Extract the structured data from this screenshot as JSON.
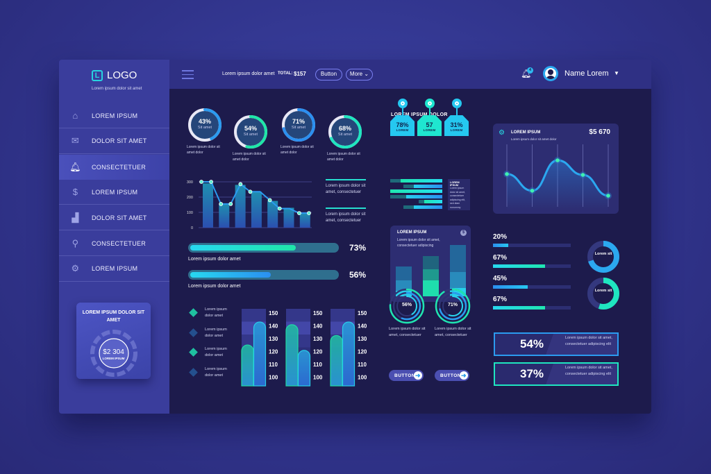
{
  "sidebar": {
    "logo_letter": "L",
    "logo_text": "LOGO",
    "tagline": "Lorem ipsum dolor sit amet",
    "items": [
      {
        "label": "LOREM IPSUM",
        "icon": "home-icon"
      },
      {
        "label": "DOLOR SIT AMET",
        "icon": "mail-icon"
      },
      {
        "label": "CONSECTETUER",
        "icon": "bell-icon",
        "active": true
      },
      {
        "label": "LOREM IPSUM",
        "icon": "dollar-icon"
      },
      {
        "label": "DOLOR SIT AMET",
        "icon": "chart-icon"
      },
      {
        "label": "CONSECTETUER",
        "icon": "search-icon"
      },
      {
        "label": "LOREM IPSUM",
        "icon": "gear-icon"
      }
    ],
    "widget": {
      "title": "LOREM IPSUM DOLOR SIT AMET",
      "amount": "$2 304",
      "sub": "LOREM IPSUM"
    }
  },
  "header": {
    "text": "Lorem ipsum dolor amet",
    "total_label": "TOTAL:",
    "total_value": "$157",
    "button": "Button",
    "more": "More",
    "notifications": "4",
    "user": "Name Lorem"
  },
  "donuts": [
    {
      "value": "43%",
      "label": "Sit amet",
      "pct": 43,
      "caption": "Lorem ipsum dolor sit amet dolor"
    },
    {
      "value": "54%",
      "label": "Sit amet",
      "pct": 54,
      "caption": "Lorem ipsum dolor sit amet dolor"
    },
    {
      "value": "71%",
      "label": "Sit amet",
      "pct": 71,
      "caption": "Lorem ipsum dolor sit amet dolor"
    },
    {
      "value": "68%",
      "label": "Sit amet",
      "pct": 68,
      "caption": "Lorem ipsum dolor sit amet dolor"
    }
  ],
  "chart_data": [
    {
      "type": "bar",
      "yticks": [
        "300",
        "200",
        "100",
        "0"
      ],
      "ylim": [
        0,
        300
      ],
      "bars": [
        290,
        155,
        280,
        235,
        175,
        130,
        95
      ],
      "line": [
        300,
        300,
        155,
        155,
        285,
        235,
        235,
        180,
        125,
        125,
        95,
        95
      ],
      "legend": [
        "Lorem ipsum dolor sit amet, consectetuer",
        "Lorem ipsum dolor sit amet, consectetuer"
      ]
    },
    {
      "type": "bar",
      "ylim": [
        100,
        150
      ],
      "yticks": [
        "150",
        "140",
        "130",
        "120",
        "110",
        "100"
      ],
      "groups": [
        [
          125,
          142
        ],
        [
          140,
          121
        ],
        [
          132,
          142
        ]
      ]
    },
    {
      "type": "line",
      "title": "LOREM IPSUM",
      "subtitle": "Lorem ipsum dolor sit amet dolor",
      "amount": "$5 670",
      "values": [
        0.62,
        0.22,
        0.95,
        0.6,
        0.1
      ]
    },
    {
      "type": "bar",
      "title": "LOREM IPSUM",
      "subtitle": "Lorem ipsum dolor sit amet, consectetuer adipiscing",
      "stacks": [
        [
          0.55,
          0.3,
          0.1
        ],
        [
          0.75,
          0.5,
          0.3
        ],
        [
          0.95,
          0.45,
          0.15
        ]
      ]
    }
  ],
  "progress": [
    {
      "pct": 73,
      "label": "73%",
      "caption": "Lorem ipsum dolor amet"
    },
    {
      "pct": 56,
      "label": "56%",
      "caption": "Lorem ipsum dolor amet"
    }
  ],
  "legend_list": [
    "Lorem ipsum dolor amet",
    "Lorem ipsum dolor amet",
    "Lorem ipsum dolor amet",
    "Lorem ipsum dolor amet"
  ],
  "middle": {
    "title": "LOREM IPSUM DOLOR",
    "tags": [
      {
        "value": "78%",
        "label": "LOREM"
      },
      {
        "value": "57",
        "label": "LOREM"
      },
      {
        "value": "31%",
        "label": "LOREM"
      }
    ],
    "hbars": [
      [
        0.8,
        0.2
      ],
      [
        0.55,
        0.2
      ],
      [
        1.0,
        0
      ],
      [
        0.7,
        0.3
      ],
      [
        0.35,
        0.1
      ],
      [
        0.55,
        0.2
      ]
    ],
    "note_title": "LOREM IPSUM",
    "note": "Lorem ipsum dolor sit amet, consectetuer adipiscing elit, sed diam nonummy",
    "rings": [
      {
        "value": "56%",
        "pct": 56,
        "caption": "Lorem ipsum dolor sit amet, consectetuer",
        "button": "BUTTON"
      },
      {
        "value": "71%",
        "pct": 71,
        "caption": "Lorem ipsum dolor sit amet, consectetuer",
        "button": "BUTTON"
      }
    ]
  },
  "right": {
    "bars": [
      {
        "label": "20%",
        "pct": 20
      },
      {
        "label": "67%",
        "pct": 67
      },
      {
        "label": "45%",
        "pct": 45
      },
      {
        "label": "67%",
        "pct": 67
      }
    ],
    "donuts": [
      {
        "label": "Lorem sit",
        "pct": 70
      },
      {
        "label": "Lorem sit",
        "pct": 55
      }
    ],
    "stats": [
      {
        "value": "54%",
        "text": "Lorem ipsum dolor sit amet, consectetuer adipiscing elit"
      },
      {
        "value": "37%",
        "text": "Lorem ipsum dolor sit amet, consectetuer adipiscing elit"
      }
    ]
  },
  "colors": {
    "cyan": "#27e0e6",
    "blue": "#2b8ff0",
    "green": "#1fe6a8",
    "bg": "#1d1b4c"
  }
}
